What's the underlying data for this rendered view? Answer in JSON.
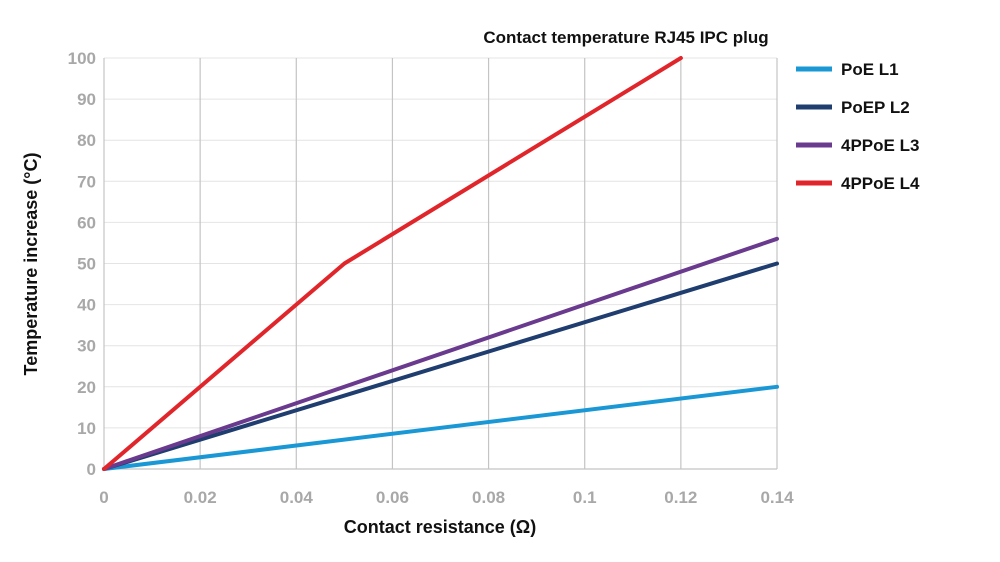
{
  "chart_data": {
    "type": "line",
    "title": "Contact temperature RJ45 IPC plug",
    "xlabel": "Contact resistance (Ω)",
    "ylabel": "Temperature increase (°C)",
    "xlim": [
      0,
      0.14
    ],
    "ylim": [
      0,
      100
    ],
    "x_ticks": [
      0,
      0.02,
      0.04,
      0.06,
      0.08,
      0.1,
      0.12,
      0.14
    ],
    "x_tick_labels": [
      "0",
      "0.02",
      "0.04",
      "0.06",
      "0.08",
      "0.1",
      "0.12",
      "0.14"
    ],
    "y_ticks": [
      0,
      10,
      20,
      30,
      40,
      50,
      60,
      70,
      80,
      90,
      100
    ],
    "y_tick_labels": [
      "0",
      "10",
      "20",
      "30",
      "40",
      "50",
      "60",
      "70",
      "80",
      "90",
      "100"
    ],
    "grid": {
      "vertical": true,
      "horizontal": true
    },
    "legend_position": "right",
    "series": [
      {
        "name": "PoE L1",
        "color": "#1a98d5",
        "points": [
          [
            0,
            0
          ],
          [
            0.14,
            20
          ]
        ]
      },
      {
        "name": "PoEP L2",
        "color": "#1f3d6f",
        "points": [
          [
            0,
            0
          ],
          [
            0.14,
            50
          ]
        ]
      },
      {
        "name": "4PPoE L3",
        "color": "#6a3a8e",
        "points": [
          [
            0,
            0
          ],
          [
            0.14,
            56
          ]
        ]
      },
      {
        "name": "4PPoE L4",
        "color": "#e0262b",
        "points": [
          [
            0,
            0
          ],
          [
            0.05,
            50
          ],
          [
            0.12,
            100
          ]
        ]
      }
    ]
  }
}
